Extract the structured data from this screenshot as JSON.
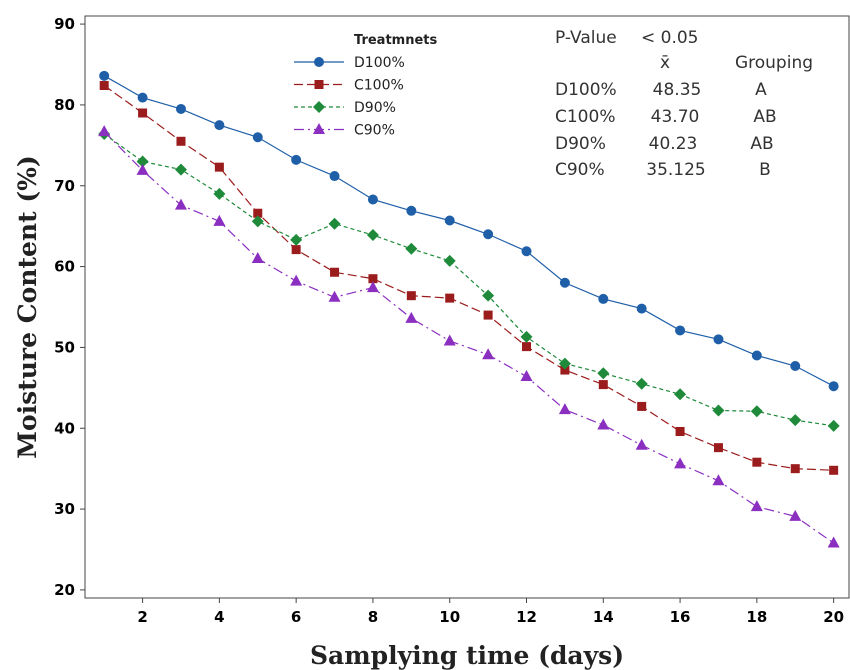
{
  "chart_data": {
    "type": "line",
    "title": "",
    "xlabel": "Samplying time (days)",
    "ylabel": "Moisture Content (%)",
    "xlim": [
      0.5,
      20.4
    ],
    "ylim": [
      19,
      91
    ],
    "xticks": [
      2,
      4,
      6,
      8,
      10,
      12,
      14,
      16,
      18,
      20
    ],
    "yticks": [
      20,
      30,
      40,
      50,
      60,
      70,
      80,
      90
    ],
    "grid": false,
    "legend": {
      "title": "Treatmnets",
      "position": "top-center"
    },
    "x": [
      1,
      2,
      3,
      4,
      5,
      6,
      7,
      8,
      9,
      10,
      11,
      12,
      13,
      14,
      15,
      16,
      17,
      18,
      19,
      20
    ],
    "series": [
      {
        "name": "D100%",
        "color": "#1f5fa8",
        "marker": "circle",
        "dash": "",
        "values": [
          83.6,
          80.9,
          79.5,
          77.5,
          76.0,
          73.2,
          71.2,
          68.3,
          66.9,
          65.7,
          64.0,
          61.9,
          58.0,
          56.0,
          54.8,
          52.1,
          51.0,
          49.0,
          47.7,
          45.2
        ]
      },
      {
        "name": "C100%",
        "color": "#9b1c1c",
        "marker": "square",
        "dash": "9,4",
        "values": [
          82.4,
          79.0,
          75.5,
          72.3,
          66.6,
          62.1,
          59.3,
          58.5,
          56.4,
          56.1,
          54.0,
          50.1,
          47.2,
          45.4,
          42.7,
          39.6,
          37.6,
          35.8,
          35.0,
          34.8
        ]
      },
      {
        "name": "D90%",
        "color": "#1e8a3a",
        "marker": "diamond",
        "dash": "4,3",
        "values": [
          76.4,
          73.0,
          72.0,
          69.0,
          65.6,
          63.3,
          65.3,
          63.9,
          62.2,
          60.7,
          56.4,
          51.3,
          48.0,
          46.8,
          45.5,
          44.2,
          42.2,
          42.1,
          41.0,
          40.3
        ]
      },
      {
        "name": "C90%",
        "color": "#8b2fc0",
        "marker": "triangle",
        "dash": "10,4,2,4",
        "values": [
          76.7,
          71.9,
          67.6,
          65.6,
          61.0,
          58.2,
          56.2,
          57.4,
          53.6,
          50.8,
          49.1,
          46.4,
          42.3,
          40.4,
          37.9,
          35.6,
          33.5,
          30.3,
          29.1,
          25.8
        ]
      }
    ]
  },
  "stats": {
    "p_value_label": "P-Value",
    "p_value": "< 0.05",
    "mean_header": "x̄",
    "group_header": "Grouping",
    "rows": [
      {
        "treatment": "D100%",
        "mean": "48.35",
        "group": "A"
      },
      {
        "treatment": "C100%",
        "mean": "43.70",
        "group": "AB"
      },
      {
        "treatment": "D90%",
        "mean": "40.23",
        "group": "AB"
      },
      {
        "treatment": "C90%",
        "mean": "35.125",
        "group": "B"
      }
    ]
  }
}
